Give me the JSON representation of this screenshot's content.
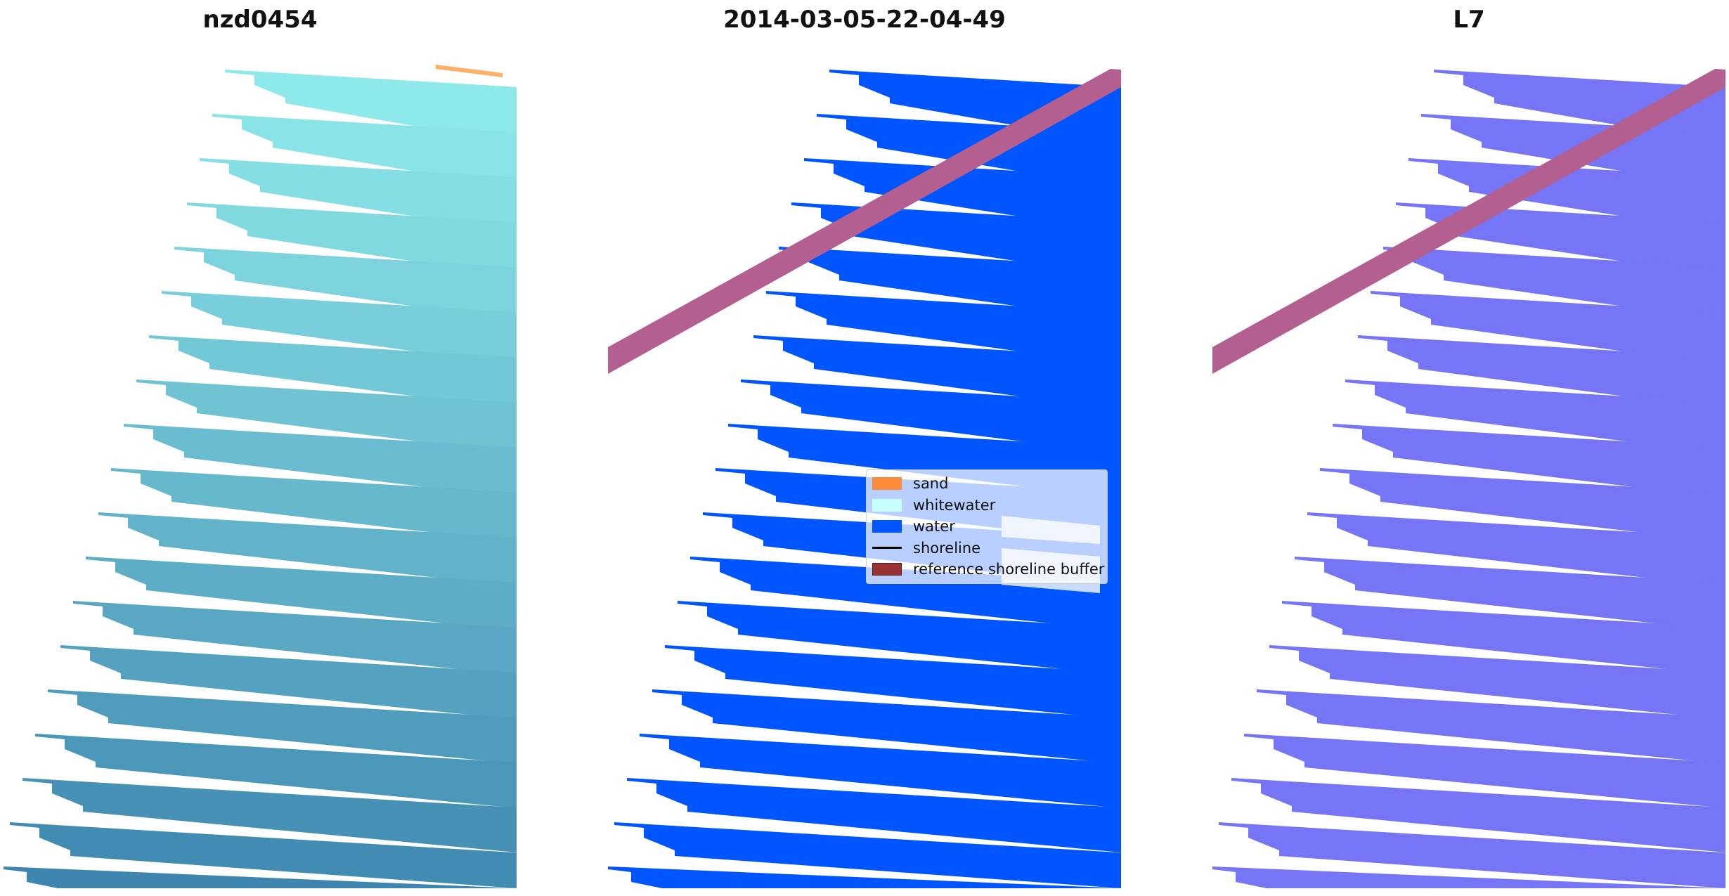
{
  "panels": [
    {
      "title": "nzd0454"
    },
    {
      "title": "2014-03-05-22-04-49"
    },
    {
      "title": "L7"
    }
  ],
  "legend": {
    "items": [
      {
        "label": "sand",
        "color": "#ff8c3a",
        "kind": "patch"
      },
      {
        "label": "whitewater",
        "color": "#c8ffff",
        "kind": "patch"
      },
      {
        "label": "water",
        "color": "#0055ff",
        "kind": "patch"
      },
      {
        "label": "shoreline",
        "color": "#000000",
        "kind": "line"
      },
      {
        "label": "reference shoreline buffer",
        "color": "#993333",
        "kind": "patch"
      }
    ]
  },
  "colors": {
    "rgb_top": "#8ee9ea",
    "rgb_bottom": "#3e86b0",
    "classified_water": "#0055ff",
    "classified_whitewater": "#c8dcff",
    "buffer": "#b35f8f",
    "mndwi": "#7575f5",
    "sand": "#ffb066"
  }
}
